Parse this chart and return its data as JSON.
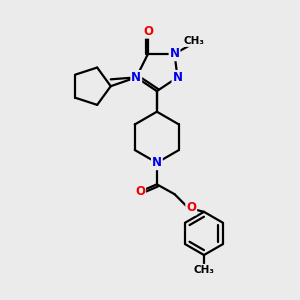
{
  "background_color": "#ebebeb",
  "bond_color": "#000000",
  "bond_width": 1.6,
  "atom_colors": {
    "N": "#0000ee",
    "O": "#ee0000",
    "C": "#000000"
  },
  "font_size_atom": 8.5,
  "font_size_methyl": 7.5,
  "figsize": [
    3.0,
    3.0
  ],
  "dpi": 100
}
